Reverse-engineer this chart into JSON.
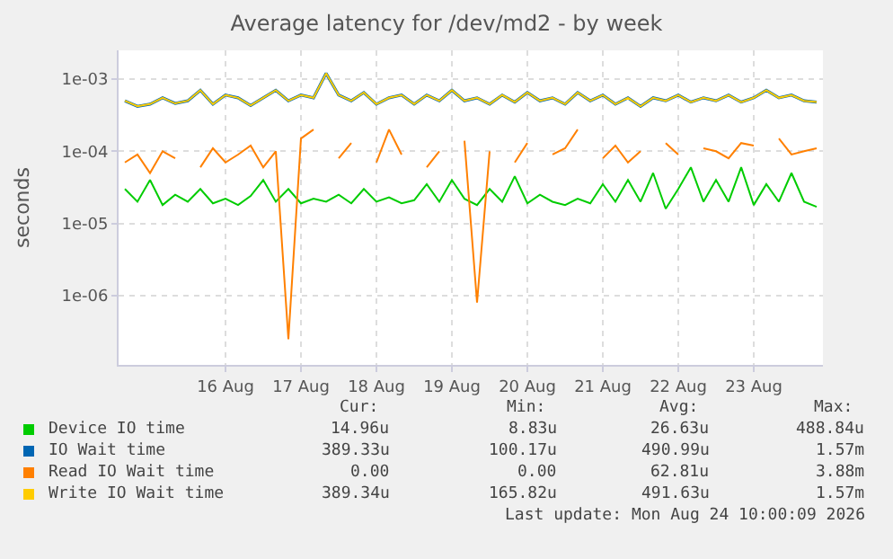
{
  "chart_data": {
    "type": "line",
    "title": "Average latency for /dev/md2 - by week",
    "ylabel": "seconds",
    "log": "y",
    "grid": true,
    "legend": "bottom",
    "marker": "none",
    "line_style": "solid",
    "xlim": [
      "2026-08-15T02:00",
      "2026-08-24T10:00"
    ],
    "xticks": [
      {
        "value": "2026-08-16T12:00",
        "label": "16 Aug"
      },
      {
        "value": "2026-08-17T12:00",
        "label": "17 Aug"
      },
      {
        "value": "2026-08-18T12:00",
        "label": "18 Aug"
      },
      {
        "value": "2026-08-19T12:00",
        "label": "19 Aug"
      },
      {
        "value": "2026-08-20T12:00",
        "label": "20 Aug"
      },
      {
        "value": "2026-08-21T12:00",
        "label": "21 Aug"
      },
      {
        "value": "2026-08-22T12:00",
        "label": "22 Aug"
      },
      {
        "value": "2026-08-23T12:00",
        "label": "23 Aug"
      }
    ],
    "ylim": [
      1.1e-07,
      0.0025
    ],
    "yticks": [
      {
        "value": 1e-06,
        "label": "1e-06"
      },
      {
        "value": 1e-05,
        "label": "1e-05"
      },
      {
        "value": 0.0001,
        "label": "1e-04"
      },
      {
        "value": 0.001,
        "label": "1e-03"
      }
    ],
    "x": [
      "2026-08-15T04:00",
      "2026-08-15T08:00",
      "2026-08-15T12:00",
      "2026-08-15T16:00",
      "2026-08-15T20:00",
      "2026-08-16T00:00",
      "2026-08-16T04:00",
      "2026-08-16T08:00",
      "2026-08-16T12:00",
      "2026-08-16T16:00",
      "2026-08-16T20:00",
      "2026-08-17T00:00",
      "2026-08-17T04:00",
      "2026-08-17T08:00",
      "2026-08-17T12:00",
      "2026-08-17T16:00",
      "2026-08-17T20:00",
      "2026-08-18T00:00",
      "2026-08-18T04:00",
      "2026-08-18T08:00",
      "2026-08-18T12:00",
      "2026-08-18T16:00",
      "2026-08-18T20:00",
      "2026-08-19T00:00",
      "2026-08-19T04:00",
      "2026-08-19T08:00",
      "2026-08-19T12:00",
      "2026-08-19T16:00",
      "2026-08-19T20:00",
      "2026-08-20T00:00",
      "2026-08-20T04:00",
      "2026-08-20T08:00",
      "2026-08-20T12:00",
      "2026-08-20T16:00",
      "2026-08-20T20:00",
      "2026-08-21T00:00",
      "2026-08-21T04:00",
      "2026-08-21T08:00",
      "2026-08-21T12:00",
      "2026-08-21T16:00",
      "2026-08-21T20:00",
      "2026-08-22T00:00",
      "2026-08-22T04:00",
      "2026-08-22T08:00",
      "2026-08-22T12:00",
      "2026-08-22T16:00",
      "2026-08-22T20:00",
      "2026-08-23T00:00",
      "2026-08-23T04:00",
      "2026-08-23T08:00",
      "2026-08-23T12:00",
      "2026-08-23T16:00",
      "2026-08-23T20:00",
      "2026-08-24T00:00",
      "2026-08-24T04:00",
      "2026-08-24T08:00"
    ],
    "series": [
      {
        "name": "Device IO time",
        "color": "#00cc00",
        "values": [
          3e-05,
          2e-05,
          4e-05,
          1.8e-05,
          2.5e-05,
          2e-05,
          3e-05,
          1.9e-05,
          2.2e-05,
          1.8e-05,
          2.4e-05,
          4e-05,
          2e-05,
          3e-05,
          1.9e-05,
          2.2e-05,
          2e-05,
          2.5e-05,
          1.9e-05,
          3e-05,
          2e-05,
          2.3e-05,
          1.9e-05,
          2.1e-05,
          3.5e-05,
          2e-05,
          4e-05,
          2.2e-05,
          1.8e-05,
          3e-05,
          2e-05,
          4.5e-05,
          1.9e-05,
          2.5e-05,
          2e-05,
          1.8e-05,
          2.2e-05,
          1.9e-05,
          3.5e-05,
          2e-05,
          4e-05,
          2e-05,
          5e-05,
          1.6e-05,
          3e-05,
          6e-05,
          2e-05,
          4e-05,
          2e-05,
          6e-05,
          1.8e-05,
          3.5e-05,
          2e-05,
          5e-05,
          2e-05,
          1.7e-05
        ]
      },
      {
        "name": "IO Wait time",
        "color": "#0066b3",
        "values": [
          0.0005,
          0.00042,
          0.00045,
          0.00055,
          0.00046,
          0.0005,
          0.0007,
          0.00045,
          0.0006,
          0.00055,
          0.00043,
          0.00055,
          0.0007,
          0.0005,
          0.0006,
          0.00055,
          0.0012,
          0.0006,
          0.0005,
          0.00065,
          0.00045,
          0.00055,
          0.0006,
          0.00045,
          0.0006,
          0.0005,
          0.0007,
          0.0005,
          0.00055,
          0.00045,
          0.0006,
          0.00048,
          0.00065,
          0.0005,
          0.00055,
          0.00045,
          0.00065,
          0.0005,
          0.0006,
          0.00045,
          0.00055,
          0.00042,
          0.00055,
          0.0005,
          0.0006,
          0.00048,
          0.00055,
          0.0005,
          0.0006,
          0.00048,
          0.00055,
          0.0007,
          0.00055,
          0.0006,
          0.0005,
          0.00048
        ]
      },
      {
        "name": "Read IO Wait time",
        "color": "#ff8000",
        "values": [
          7e-05,
          9e-05,
          5e-05,
          0.0001,
          8e-05,
          null,
          6e-05,
          0.00011,
          7e-05,
          9e-05,
          0.00012,
          6e-05,
          0.0001,
          2.5e-07,
          0.00015,
          0.0002,
          null,
          8e-05,
          0.00013,
          null,
          7e-05,
          0.0002,
          9e-05,
          null,
          6e-05,
          0.0001,
          null,
          0.00014,
          8e-07,
          0.0001,
          null,
          7e-05,
          0.00013,
          null,
          9e-05,
          0.00011,
          0.0002,
          null,
          8e-05,
          0.00012,
          7e-05,
          0.0001,
          null,
          0.00013,
          9e-05,
          null,
          0.00011,
          0.0001,
          8e-05,
          0.00013,
          0.00012,
          null,
          0.00015,
          9e-05,
          0.0001,
          0.00011
        ]
      },
      {
        "name": "Write IO Wait time",
        "color": "#ffcc00",
        "values": [
          0.0005,
          0.00042,
          0.00045,
          0.00055,
          0.00046,
          0.0005,
          0.0007,
          0.00045,
          0.0006,
          0.00055,
          0.00043,
          0.00055,
          0.0007,
          0.0005,
          0.0006,
          0.00055,
          0.0012,
          0.0006,
          0.0005,
          0.00065,
          0.00045,
          0.00055,
          0.0006,
          0.00045,
          0.0006,
          0.0005,
          0.0007,
          0.0005,
          0.00055,
          0.00045,
          0.0006,
          0.00048,
          0.00065,
          0.0005,
          0.00055,
          0.00045,
          0.00065,
          0.0005,
          0.0006,
          0.00045,
          0.00055,
          0.00042,
          0.00055,
          0.0005,
          0.0006,
          0.00048,
          0.00055,
          0.0005,
          0.0006,
          0.00048,
          0.00055,
          0.0007,
          0.00055,
          0.0006,
          0.0005,
          0.00048
        ]
      }
    ],
    "annotations": [
      "Cur:",
      "Min:",
      "Avg:",
      "Max:",
      "14.96u",
      "8.83u",
      "26.63u",
      "488.84u",
      "389.33u",
      "100.17u",
      "490.99u",
      "1.57m",
      "0.00",
      "0.00",
      "62.81u",
      "3.88m",
      "389.34u",
      "165.82u",
      "491.63u",
      "1.57m",
      "Last update: Mon Aug 24 10:00:09 2026"
    ]
  }
}
